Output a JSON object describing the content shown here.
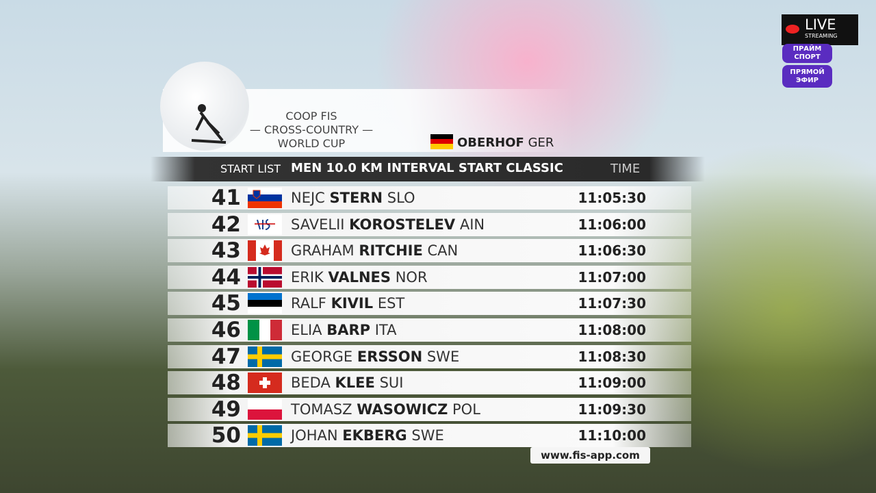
{
  "header": {
    "event_lines": [
      "COOP FIS",
      "CROSS-COUNTRY",
      "WORLD CUP"
    ],
    "venue": "OBERHOF",
    "venue_nation": "GER"
  },
  "list": {
    "label": "START LIST",
    "title": "MEN 10.0 KM INTERVAL START CLASSIC",
    "time_label": "TIME",
    "rows": [
      {
        "bib": "41",
        "first": "NEJC",
        "last": "STERN",
        "nation": "SLO",
        "time": "11:05:30"
      },
      {
        "bib": "42",
        "first": "SAVELII",
        "last": "KOROSTELEV",
        "nation": "AIN",
        "time": "11:06:00"
      },
      {
        "bib": "43",
        "first": "GRAHAM",
        "last": "RITCHIE",
        "nation": "CAN",
        "time": "11:06:30"
      },
      {
        "bib": "44",
        "first": "ERIK",
        "last": "VALNES",
        "nation": "NOR",
        "time": "11:07:00"
      },
      {
        "bib": "45",
        "first": "RALF",
        "last": "KIVIL",
        "nation": "EST",
        "time": "11:07:30"
      },
      {
        "bib": "46",
        "first": "ELIA",
        "last": "BARP",
        "nation": "ITA",
        "time": "11:08:00"
      },
      {
        "bib": "47",
        "first": "GEORGE",
        "last": "ERSSON",
        "nation": "SWE",
        "time": "11:08:30"
      },
      {
        "bib": "48",
        "first": "BEDA",
        "last": "KLEE",
        "nation": "SUI",
        "time": "11:09:00"
      },
      {
        "bib": "49",
        "first": "TOMASZ",
        "last": "WASOWICZ",
        "nation": "POL",
        "time": "11:09:30"
      },
      {
        "bib": "50",
        "first": "JOHAN",
        "last": "EKBERG",
        "nation": "SWE",
        "time": "11:10:00"
      }
    ]
  },
  "footer": {
    "url": "www.fis-app.com"
  },
  "overlay": {
    "live": "LIVE",
    "live_sub": "STREAMING",
    "channel": [
      "ПРАЙМ",
      "СПОРТ"
    ],
    "badge": [
      "ПРЯМОЙ",
      "ЭФИР"
    ]
  }
}
